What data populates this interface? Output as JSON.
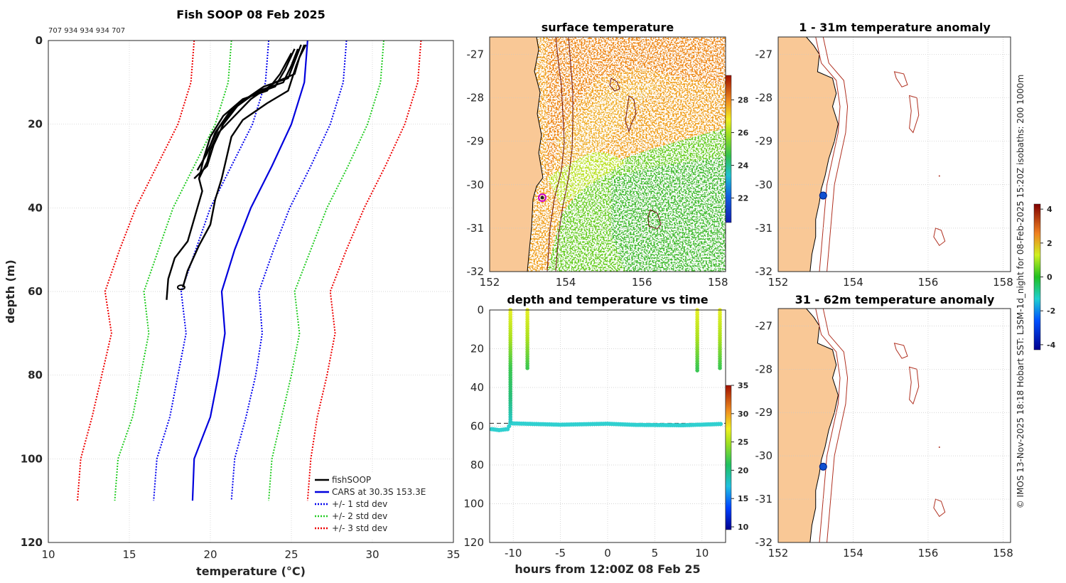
{
  "chart_data": [
    {
      "type": "line",
      "title": "Fish SOOP 08 Feb 2025",
      "header_note": "707 934 934 934 707",
      "xlabel": "temperature (°C)",
      "ylabel": "depth (m)",
      "xlim": [
        10,
        35
      ],
      "ylim": [
        0,
        120
      ],
      "y_reversed": true,
      "grid": true,
      "x_ticks": [
        "10",
        "15",
        "20",
        "25",
        "30",
        "35"
      ],
      "y_ticks": [
        "0",
        "20",
        "40",
        "60",
        "80",
        "100",
        "120"
      ],
      "legend_position": "bottom-right",
      "legend": [
        "fishSOOP",
        "CARS at 30.3S 153.3E",
        "+/- 1 std dev",
        "+/- 2 std dev",
        "+/- 3 std dev"
      ],
      "depths": [
        0,
        10,
        20,
        30,
        40,
        50,
        60,
        70,
        80,
        90,
        100,
        110
      ],
      "series": [
        {
          "name": "CARS mean",
          "color": "#0000dd",
          "style": "solid",
          "values": [
            26.0,
            25.8,
            25.0,
            23.8,
            22.5,
            21.5,
            20.7,
            20.9,
            20.5,
            20.0,
            19.0,
            18.9
          ]
        },
        {
          "name": "+1 std",
          "color": "#0000ee",
          "style": "dotted",
          "values": [
            28.4,
            28.2,
            27.4,
            26.2,
            24.9,
            23.9,
            23.0,
            23.2,
            22.8,
            22.2,
            21.5,
            21.3
          ]
        },
        {
          "name": "-1 std",
          "color": "#0000ee",
          "style": "dotted",
          "values": [
            23.6,
            23.4,
            22.6,
            21.3,
            20.0,
            19.1,
            18.2,
            18.5,
            18.0,
            17.5,
            16.7,
            16.5
          ]
        },
        {
          "name": "+2 std",
          "color": "#22cc22",
          "style": "dotted",
          "values": [
            30.7,
            30.5,
            29.7,
            28.5,
            27.2,
            26.2,
            25.2,
            25.5,
            25.0,
            24.4,
            23.8,
            23.6
          ]
        },
        {
          "name": "-2 std",
          "color": "#22cc22",
          "style": "dotted",
          "values": [
            21.3,
            21.1,
            20.3,
            19.0,
            17.7,
            16.8,
            15.9,
            16.2,
            15.7,
            15.2,
            14.3,
            14.1
          ]
        },
        {
          "name": "+3 std",
          "color": "#ee0000",
          "style": "dotted",
          "values": [
            33.0,
            32.8,
            32.0,
            30.8,
            29.5,
            28.4,
            27.4,
            27.7,
            27.2,
            26.6,
            26.2,
            26.0
          ]
        },
        {
          "name": "-3 std",
          "color": "#ee0000",
          "style": "dotted",
          "values": [
            19.0,
            18.8,
            18.0,
            16.7,
            15.4,
            14.4,
            13.5,
            13.9,
            13.3,
            12.7,
            12.0,
            11.8
          ]
        }
      ],
      "profiles": [
        [
          [
            25.9,
            1
          ],
          [
            25.5,
            4
          ],
          [
            25.2,
            8
          ],
          [
            24.0,
            10
          ],
          [
            22.5,
            14
          ],
          [
            21.5,
            18
          ],
          [
            20.5,
            22
          ],
          [
            20.0,
            26
          ],
          [
            19.8,
            29
          ],
          [
            19.3,
            33
          ]
        ],
        [
          [
            25.6,
            1
          ],
          [
            25.2,
            5
          ],
          [
            24.8,
            9
          ],
          [
            23.3,
            11
          ],
          [
            21.8,
            15
          ],
          [
            20.8,
            20
          ],
          [
            20.2,
            25
          ],
          [
            19.8,
            30
          ],
          [
            19.0,
            33
          ]
        ],
        [
          [
            25.4,
            2
          ],
          [
            25.0,
            6
          ],
          [
            24.5,
            10
          ],
          [
            23.0,
            12
          ],
          [
            21.5,
            16
          ],
          [
            20.5,
            21
          ],
          [
            20.0,
            25
          ],
          [
            19.5,
            29
          ]
        ],
        [
          [
            25.2,
            2
          ],
          [
            24.6,
            7
          ],
          [
            24.0,
            11
          ],
          [
            22.6,
            13
          ],
          [
            21.2,
            17
          ],
          [
            20.3,
            22
          ],
          [
            19.8,
            27
          ],
          [
            19.2,
            31
          ]
        ],
        [
          [
            25.0,
            3
          ],
          [
            24.3,
            8
          ],
          [
            23.5,
            12
          ],
          [
            22.0,
            14
          ],
          [
            20.8,
            18
          ],
          [
            20.0,
            23
          ],
          [
            19.6,
            28
          ],
          [
            19.3,
            33
          ],
          [
            19.5,
            36
          ],
          [
            19.2,
            40
          ],
          [
            18.6,
            48
          ],
          [
            17.8,
            52
          ],
          [
            17.4,
            57
          ],
          [
            17.3,
            62
          ]
        ],
        [
          [
            25.8,
            1
          ],
          [
            25.3,
            6
          ],
          [
            24.8,
            12
          ],
          [
            23.5,
            15
          ],
          [
            22.0,
            19
          ],
          [
            21.3,
            23
          ],
          [
            21.0,
            28
          ],
          [
            20.7,
            33
          ],
          [
            20.3,
            38
          ],
          [
            20.0,
            44
          ],
          [
            19.3,
            49
          ],
          [
            18.6,
            55
          ],
          [
            18.3,
            59
          ]
        ]
      ]
    },
    {
      "type": "heatmap",
      "title": "surface temperature",
      "xlim": [
        152,
        158.2
      ],
      "ylim": [
        -32,
        -26.6
      ],
      "x_ticks": [
        "152",
        "154",
        "156",
        "158"
      ],
      "y_ticks": [
        "-27",
        "-28",
        "-29",
        "-30",
        "-31",
        "-32"
      ],
      "colorbar_ticks": [
        "22",
        "24",
        "26",
        "28"
      ],
      "colorbar_range": [
        20.5,
        29.5
      ],
      "marker": {
        "lon": 153.3,
        "lat": -30.3
      }
    },
    {
      "type": "scatter",
      "title": "depth and temperature vs time",
      "xlabel": "hours from 12:00Z 08 Feb 25",
      "ylabel": "",
      "xlim": [
        -12.5,
        12.5
      ],
      "ylim": [
        0,
        120
      ],
      "y_reversed": true,
      "x_ticks": [
        "-10",
        "-5",
        "0",
        "5",
        "10"
      ],
      "y_ticks": [
        "0",
        "20",
        "40",
        "60",
        "80",
        "100",
        "120"
      ],
      "colorbar_ticks": [
        "10",
        "15",
        "20",
        "25",
        "30",
        "35"
      ],
      "colorbar_range": [
        9.5,
        35
      ],
      "reference_depth": 58.5,
      "casts": [
        {
          "hour": -10.3,
          "max_depth": 58
        },
        {
          "hour": -8.5,
          "max_depth": 30
        },
        {
          "hour": 9.5,
          "max_depth": 32
        },
        {
          "hour": 11.9,
          "max_depth": 30
        }
      ],
      "tow_depth": [
        [
          -12.3,
          61.5
        ],
        [
          -11.5,
          62
        ],
        [
          -10.6,
          61.5
        ],
        [
          -10.3,
          58.5
        ],
        [
          -5,
          59.2
        ],
        [
          0,
          58.7
        ],
        [
          3,
          59.3
        ],
        [
          8,
          59.5
        ],
        [
          12.2,
          58.8
        ]
      ]
    },
    {
      "type": "heatmap",
      "title": "1 - 31m temperature anomaly",
      "xlim": [
        152,
        158.2
      ],
      "ylim": [
        -32,
        -26.6
      ],
      "x_ticks": [
        "152",
        "154",
        "156",
        "158"
      ],
      "y_ticks": [
        "-27",
        "-28",
        "-29",
        "-30",
        "-31",
        "-32"
      ],
      "marker": {
        "lon": 153.2,
        "lat": -30.25
      }
    },
    {
      "type": "heatmap",
      "title": "31 - 62m temperature anomaly",
      "xlim": [
        152,
        158.2
      ],
      "ylim": [
        -32,
        -26.6
      ],
      "x_ticks": [
        "152",
        "154",
        "156",
        "158"
      ],
      "y_ticks": [
        "-27",
        "-28",
        "-29",
        "-30",
        "-31",
        "-32"
      ],
      "marker": {
        "lon": 153.2,
        "lat": -30.25
      }
    }
  ],
  "anomaly_colorbar": {
    "ticks": [
      "4",
      "2",
      "0",
      "-2",
      "-4"
    ],
    "range": [
      -4.3,
      4.3
    ]
  },
  "side_text": "© IMOS 13-Nov-2025 18:18 Hobart SST: L3SM-1d_night for 08-Feb-2025 15:20Z isobaths: 200  1000m",
  "colors": {
    "land": "#f9c896",
    "cars": "#0000dd",
    "std1": "#0000ee",
    "std2": "#22cc22",
    "std3": "#ee0000",
    "isobath": "#b03020"
  }
}
